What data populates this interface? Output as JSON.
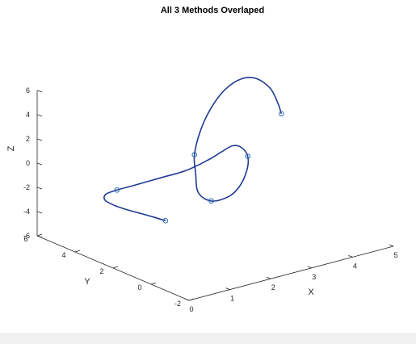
{
  "chart_data": {
    "type": "line3d",
    "title": "All 3 Methods Overlaped",
    "xlabel": "X",
    "ylabel": "Y",
    "zlabel": "Z",
    "xlim": [
      0,
      5
    ],
    "ylim": [
      -2,
      6
    ],
    "zlim": [
      -6,
      6
    ],
    "x_ticks": [
      "0",
      "1",
      "2",
      "3",
      "4",
      "5"
    ],
    "y_ticks": [
      "-2",
      "0",
      "2",
      "4",
      "6"
    ],
    "z_ticks": [
      "-6",
      "-4",
      "-2",
      "0",
      "2",
      "4",
      "6"
    ],
    "grid": false,
    "line_color": "#1f3a93",
    "marker_color": "#2e6db4",
    "series": [
      {
        "points": [
          [
            2.23,
            4.04,
            -5.44
          ],
          [
            2.15,
            4.52,
            -5.38
          ],
          [
            2.0,
            4.94,
            -5.2
          ],
          [
            1.8,
            5.24,
            -4.9
          ],
          [
            1.6,
            5.38,
            -4.5
          ],
          [
            1.3,
            5.23,
            -3.7
          ],
          [
            1.05,
            4.64,
            -2.6
          ],
          [
            0.95,
            3.84,
            -1.63
          ],
          [
            1.0,
            3.04,
            -0.75
          ],
          [
            1.25,
            2.2,
            0.2
          ],
          [
            1.6,
            1.6,
            0.9
          ],
          [
            2.05,
            1.4,
            1.5
          ],
          [
            2.45,
            1.5,
            1.8
          ],
          [
            2.76,
            1.65,
            1.87
          ],
          [
            2.95,
            1.6,
            1.6
          ],
          [
            3.04,
            1.45,
            0.88
          ],
          [
            2.9,
            1.2,
            0.0
          ],
          [
            2.65,
            1.05,
            -1.0
          ],
          [
            2.4,
            1.1,
            -1.66
          ],
          [
            2.1,
            1.35,
            -1.9
          ],
          [
            1.9,
            1.6,
            -1.2
          ],
          [
            1.95,
            1.85,
            0.2
          ],
          [
            2.06,
            2.15,
            1.42
          ],
          [
            2.4,
            2.55,
            2.9
          ],
          [
            2.85,
            2.95,
            4.1
          ],
          [
            3.35,
            3.3,
            4.9
          ],
          [
            3.85,
            3.5,
            5.2
          ],
          [
            4.2,
            3.5,
            4.9
          ],
          [
            4.45,
            3.3,
            4.0
          ],
          [
            4.5,
            3.0,
            2.9
          ],
          [
            4.47,
            2.76,
            2.24
          ]
        ],
        "markers": [
          [
            2.23,
            4.04,
            -5.44
          ],
          [
            0.95,
            3.84,
            -1.63
          ],
          [
            2.06,
            2.15,
            1.42
          ],
          [
            3.04,
            1.45,
            0.88
          ],
          [
            2.1,
            1.35,
            -1.9
          ],
          [
            4.47,
            2.76,
            2.24
          ]
        ]
      }
    ]
  }
}
